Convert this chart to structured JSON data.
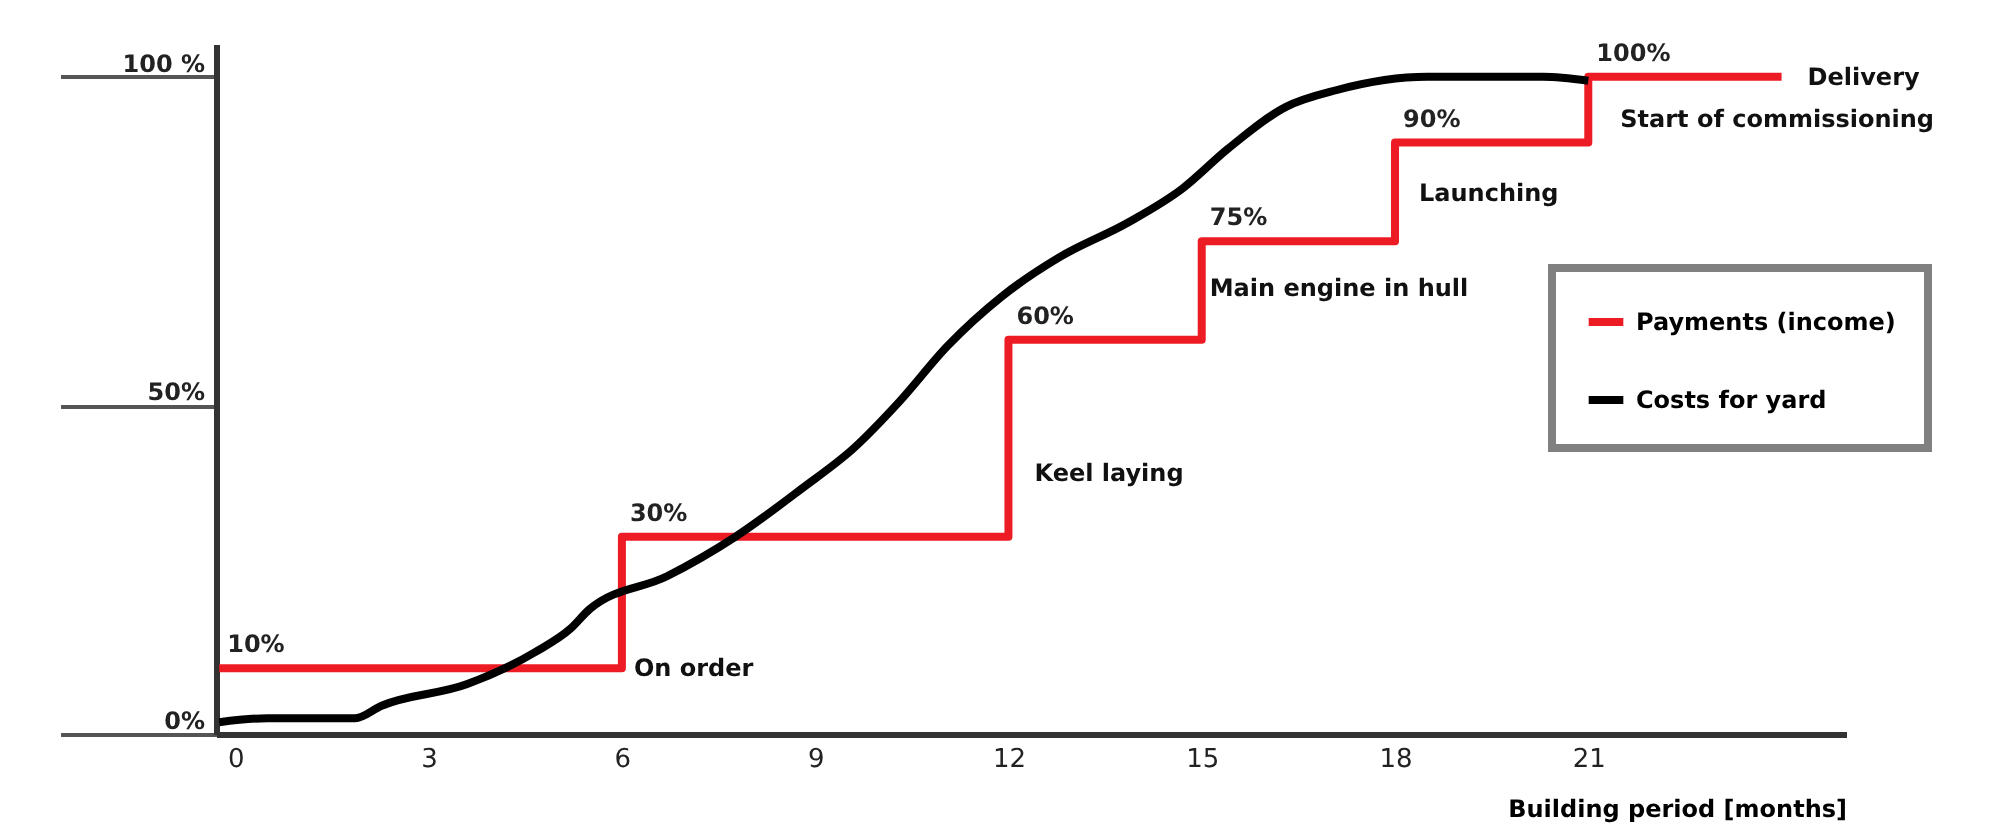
{
  "chart_data": {
    "type": "line",
    "xlabel": "Building period [months]",
    "xlim": [
      -0.3,
      25
    ],
    "xticks": [
      0,
      3,
      6,
      9,
      12,
      15,
      18,
      21
    ],
    "ylim": [
      0,
      105
    ],
    "yticks": [
      {
        "value": 0,
        "label": "0%"
      },
      {
        "value": 50,
        "label": "50%"
      },
      {
        "value": 100,
        "label": "100 %"
      }
    ],
    "grid": false,
    "legend": "right",
    "line_style": "solid",
    "marker": "none",
    "series": [
      {
        "name": "Payments (income)",
        "type": "step",
        "color": "#ed1c24",
        "x": [
          -0.25,
          6,
          12,
          15,
          18,
          21,
          24
        ],
        "values": [
          10,
          30,
          60,
          75,
          90,
          100,
          100
        ],
        "value_labels": [
          "10%",
          "30%",
          "60%",
          "75%",
          "90%",
          "100%",
          null
        ]
      },
      {
        "name": "Costs for yard",
        "type": "line",
        "color": "#000000",
        "x": [
          -0.25,
          0.5,
          1.86,
          2.27,
          3.6,
          4.66,
          5.2,
          5.5,
          6.7,
          7.76,
          8.8,
          9.6,
          10.3,
          11.05,
          11.9,
          12.8,
          13.85,
          14.7,
          15.4,
          16.3,
          17.1,
          18.5,
          20.3,
          21
        ],
        "values": [
          1.8,
          2.4,
          2.4,
          4.3,
          7.6,
          12.5,
          16,
          19,
          24,
          30,
          37.4,
          43.5,
          50.5,
          59,
          66.6,
          72.6,
          77.8,
          83,
          89,
          95.4,
          98,
          100,
          100,
          99.4
        ]
      }
    ],
    "annotations": [
      {
        "text": "On order",
        "x": 6,
        "y": 10
      },
      {
        "text": "Keel laying",
        "x": 12,
        "y": 30
      },
      {
        "text": "Main engine in hull",
        "x": 15,
        "y": 60
      },
      {
        "text": "Launching",
        "x": 18,
        "y": 75
      },
      {
        "text": "Start of commissioning",
        "x": 21,
        "y": 90
      },
      {
        "text": "Delivery",
        "x": 24,
        "y": 100
      }
    ]
  }
}
